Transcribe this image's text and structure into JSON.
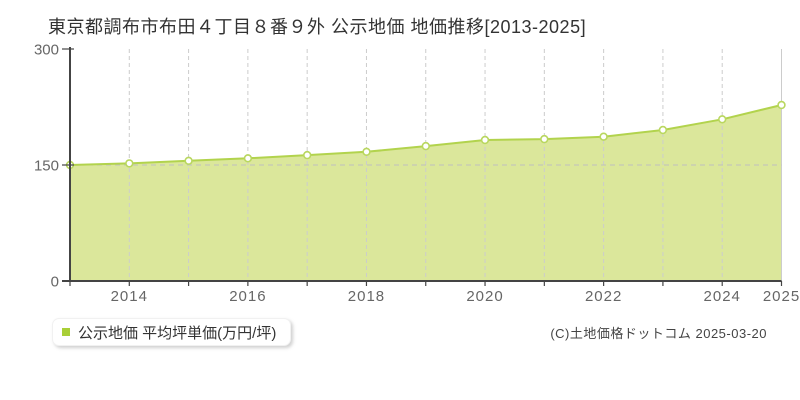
{
  "title": "東京都調布市布田４丁目８番９外 公示地価 地価推移[2013-2025]",
  "legend": {
    "label": "公示地価 平均坪単価(万円/坪)",
    "marker_color": "#a9cf37"
  },
  "copyright": "(C)土地価格ドットコム 2025-03-20",
  "chart_data": {
    "type": "area",
    "title": "東京都調布市布田４丁目８番９外 公示地価 地価推移[2013-2025]",
    "series_name": "公示地価 平均坪単価(万円/坪)",
    "unit": "万円/坪",
    "x": [
      2013,
      2014,
      2015,
      2016,
      2017,
      2018,
      2019,
      2020,
      2021,
      2022,
      2023,
      2024,
      2025
    ],
    "values": [
      150.0,
      152.1,
      155.4,
      158.7,
      162.8,
      167.1,
      174.5,
      182.3,
      183.5,
      186.6,
      195.3,
      209.1,
      227.6
    ],
    "ylim": [
      0,
      300
    ],
    "y_ticks": [
      0,
      150,
      300
    ],
    "x_labeled_ticks": [
      2014,
      2016,
      2018,
      2020,
      2022,
      2024,
      2025
    ],
    "grid": "vertical-dashed-per-year",
    "reference_line_y": 150,
    "legend_position": "bottom-left",
    "colors": {
      "area_fill": "#dbe79b",
      "line": "#b2d34d",
      "marker_fill": "#ffffff",
      "marker_stroke": "#b9d75f",
      "grid": "#cccccc",
      "reference_line": "#bfbfbf",
      "axis": "#444444",
      "tick_label": "#666666"
    }
  }
}
